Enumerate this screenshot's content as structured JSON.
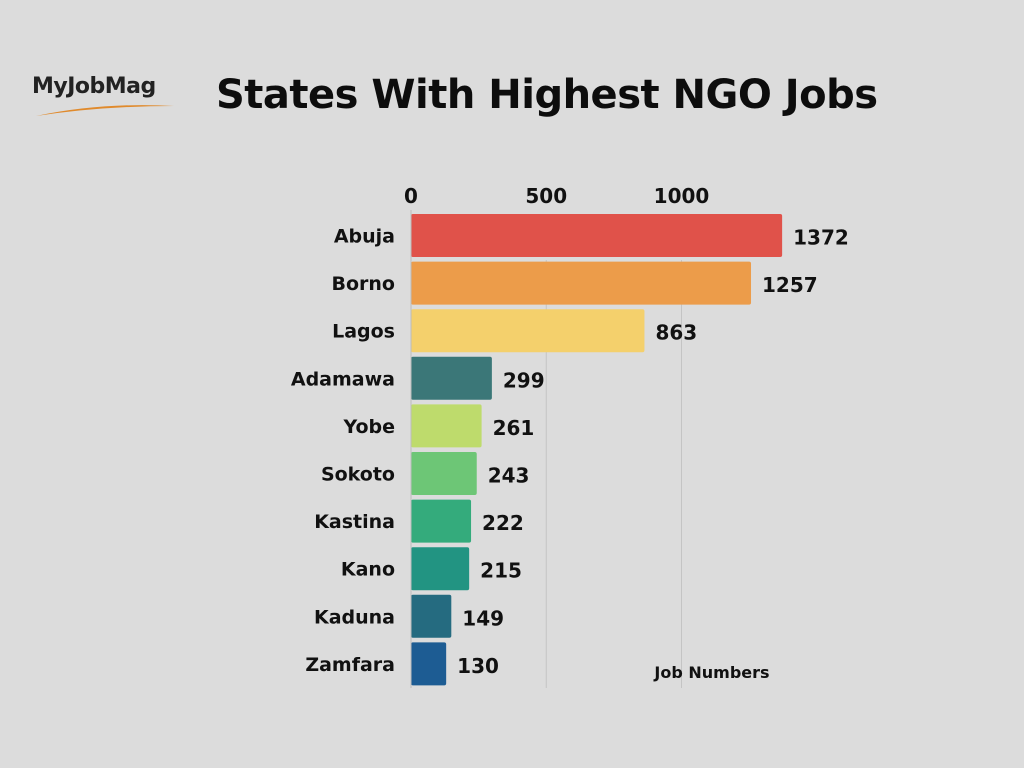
{
  "logo": {
    "text": "MyJobMag",
    "swoosh_color": "#e08a2c"
  },
  "chart_data": {
    "type": "bar",
    "orientation": "horizontal",
    "title": "States With Highest NGO Jobs",
    "xlabel": "Job Numbers",
    "ylabel": "",
    "xlim": [
      0,
      1400
    ],
    "xticks": [
      0,
      500,
      1000
    ],
    "tick_labels": [
      "0",
      "500",
      "1000"
    ],
    "grid": true,
    "axis_position": "top",
    "categories": [
      "Abuja",
      "Borno",
      "Lagos",
      "Adamawa",
      "Yobe",
      "Sokoto",
      "Kastina",
      "Kano",
      "Kaduna",
      "Zamfara"
    ],
    "values": [
      1372,
      1257,
      863,
      299,
      261,
      243,
      222,
      215,
      149,
      130
    ],
    "value_labels": [
      "1372",
      "1257",
      "863",
      "299",
      "261",
      "243",
      "222",
      "215",
      "149",
      "130"
    ],
    "colors": [
      "#e0524a",
      "#ec9c4a",
      "#f4d06c",
      "#3b7778",
      "#bedb6c",
      "#6dc676",
      "#34ab7c",
      "#229482",
      "#256b80",
      "#1d5c93"
    ]
  }
}
